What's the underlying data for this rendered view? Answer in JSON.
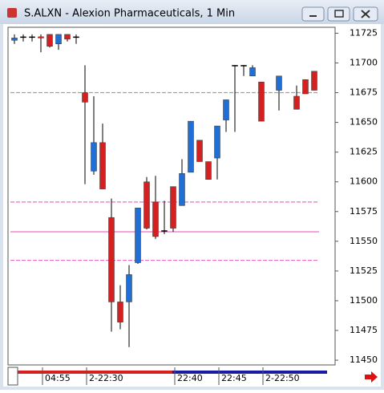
{
  "chart_data": {
    "type": "candlestick",
    "title": "S.ALXN - Alexion Pharmaceuticals, 1 Min",
    "up_color": "#1f6fd6",
    "down_color": "#d42020",
    "categories": [
      null,
      null,
      null,
      "04:55",
      null,
      null,
      null,
      null,
      "2-22:30",
      null,
      null,
      null,
      null,
      null,
      null,
      null,
      null,
      null,
      "22:40",
      null,
      null,
      null,
      null,
      "22:45",
      null,
      null,
      null,
      null,
      "2-22:50",
      null,
      null,
      null,
      null,
      null,
      null
    ],
    "open": [
      11719,
      11722,
      11722,
      11722,
      11724,
      11716,
      11724,
      11722,
      11675,
      11609,
      11633,
      11570,
      11499,
      11499,
      11532,
      11600,
      11583,
      11559,
      11596,
      11580,
      11608,
      11635,
      11617,
      11620,
      11652,
      11698,
      11698,
      11689,
      11684,
      null,
      11677,
      null,
      11672,
      11686,
      11693
    ],
    "high": [
      11724,
      11724,
      11724,
      11724,
      11724,
      11724,
      11724,
      11724,
      11698,
      11672,
      11649,
      11586,
      11513,
      11530,
      11578,
      11604,
      11605,
      11584,
      11596,
      11619,
      11651,
      11635,
      11617,
      11647,
      11669,
      11698,
      11698,
      11698,
      11684,
      null,
      11689,
      null,
      11681,
      11686,
      11693
    ],
    "low": [
      11716,
      11718,
      11718,
      11709,
      11713,
      11711,
      11718,
      11716,
      11598,
      11606,
      11594,
      11474,
      11476,
      11461,
      11531,
      11560,
      11552,
      11556,
      11558,
      11580,
      11608,
      11617,
      11602,
      11602,
      11642,
      11642,
      11689,
      11689,
      11651,
      null,
      11660,
      null,
      11661,
      11674,
      11677
    ],
    "close": [
      11721,
      11722,
      11722,
      11721,
      11714,
      11724,
      11720,
      11722,
      11667,
      11633,
      11594,
      11499,
      11482,
      11522,
      11578,
      11561,
      11554,
      11559,
      11561,
      11607,
      11651,
      11617,
      11602,
      11647,
      11669,
      11698,
      11698,
      11696,
      11651,
      null,
      11689,
      null,
      11661,
      11674,
      11677
    ],
    "levels": [
      {
        "value": 11675,
        "color": "#a0a0a0"
      },
      {
        "value": 11583,
        "color": "#f06ac8"
      },
      {
        "value": 11558,
        "color": "#f06ac8"
      },
      {
        "value": 11534,
        "color": "#f06ac8"
      }
    ],
    "ylim": [
      11446,
      11730
    ],
    "yticks": [
      11725,
      11700,
      11675,
      11650,
      11625,
      11600,
      11575,
      11550,
      11525,
      11500,
      11475,
      11450
    ]
  }
}
